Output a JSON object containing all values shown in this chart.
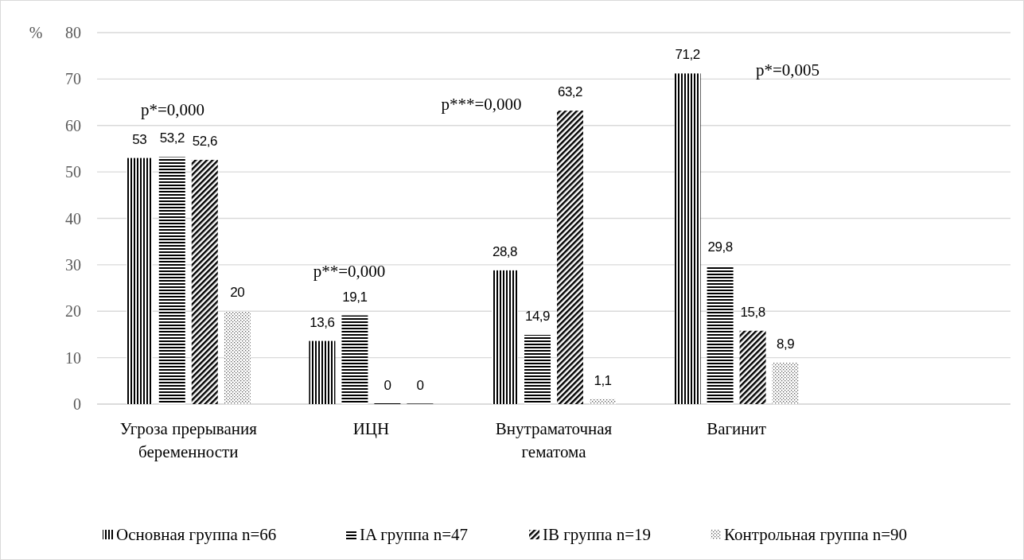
{
  "chart_data": {
    "type": "bar",
    "ylabel": "%",
    "categories": [
      "Угроза прерывания беременности",
      "ИЦН",
      "Внутраматочная гематома",
      "Вагинит",
      null
    ],
    "series": [
      {
        "name": "Основная группа n=66",
        "color": "#000000",
        "values": [
          53,
          13.6,
          28.8,
          71.2,
          null
        ],
        "value_labels": [
          "53",
          "13,6",
          "28,8",
          "71,2",
          null
        ]
      },
      {
        "name": "IA группа n=47",
        "color": "#000000",
        "values": [
          53.2,
          19.1,
          14.9,
          29.8,
          null
        ],
        "value_labels": [
          "53,2",
          "19,1",
          "14,9",
          "29,8",
          null
        ]
      },
      {
        "name": "IB группа n=19",
        "color": "#000000",
        "values": [
          52.6,
          0,
          63.2,
          15.8,
          null
        ],
        "value_labels": [
          "52,6",
          "0",
          "63,2",
          "15,8",
          null
        ]
      },
      {
        "name": "Контрольная группа n=90",
        "color": "#595959",
        "values": [
          20,
          0,
          1.1,
          8.9,
          null
        ],
        "value_labels": [
          "20",
          "0",
          "1,1",
          "8,9",
          null
        ]
      }
    ],
    "ylim": [
      0,
      80
    ],
    "yticks": [
      0,
      10,
      20,
      30,
      40,
      50,
      60,
      70,
      80
    ],
    "grid": "y",
    "legend": "bottom",
    "annotations": [
      "p*=0,000",
      "p**=0,000",
      "p***=0,000",
      "p*=0,005"
    ]
  }
}
